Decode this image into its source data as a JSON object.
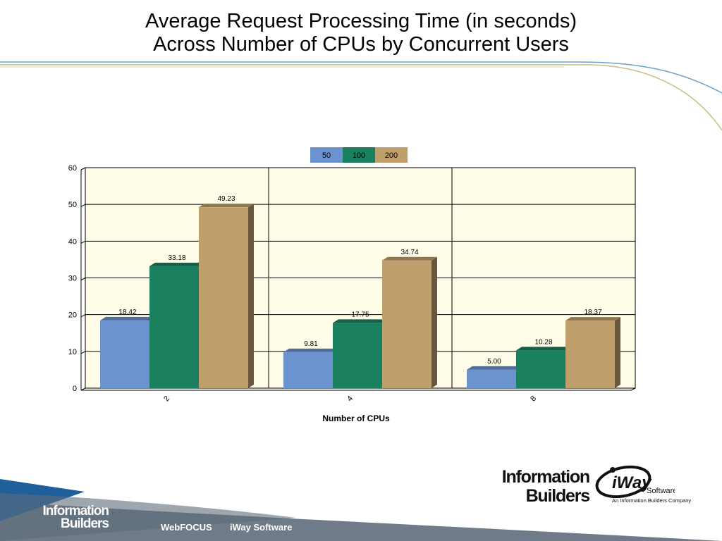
{
  "slide": {
    "title_line1": "Average Request Processing Time (in seconds)",
    "title_line2": "Across Number of CPUs by Concurrent Users"
  },
  "colors": {
    "series_50": "#6b93cf",
    "series_100": "#1a8060",
    "series_200": "#bf9f6c",
    "plot_bg": "#fffde8",
    "footer_band": "#7e8a96",
    "brand_blue": "#1f5f9c"
  },
  "chart_data": {
    "type": "bar",
    "title": "",
    "xlabel": "Number of CPUs",
    "ylabel": "",
    "categories": [
      "2",
      "4",
      "8"
    ],
    "series": [
      {
        "name": "50",
        "values": [
          18.42,
          9.81,
          5.0
        ],
        "labels": [
          "18.42",
          "9.81",
          "5.00"
        ]
      },
      {
        "name": "100",
        "values": [
          33.18,
          17.75,
          10.28
        ],
        "labels": [
          "33.18",
          "17.75",
          "10.28"
        ]
      },
      {
        "name": "200",
        "values": [
          49.23,
          34.74,
          18.37
        ],
        "labels": [
          "49.23",
          "34.74",
          "18.37"
        ]
      }
    ],
    "ylim": [
      0,
      60
    ],
    "yticks": [
      "0",
      "10",
      "20",
      "30",
      "40",
      "50",
      "60"
    ],
    "grid": true,
    "legend_position": "top-center",
    "style": "3d-bars"
  },
  "logos": {
    "ib_line1": "Information",
    "ib_line2": "Builders",
    "iway": "iWay",
    "iway_sub": "Software",
    "iway_tagline": "An Information Builders Company"
  },
  "footer": {
    "ib_line1": "Information",
    "ib_line2": "Builders",
    "links": [
      "WebFOCUS",
      "iWay Software"
    ]
  }
}
